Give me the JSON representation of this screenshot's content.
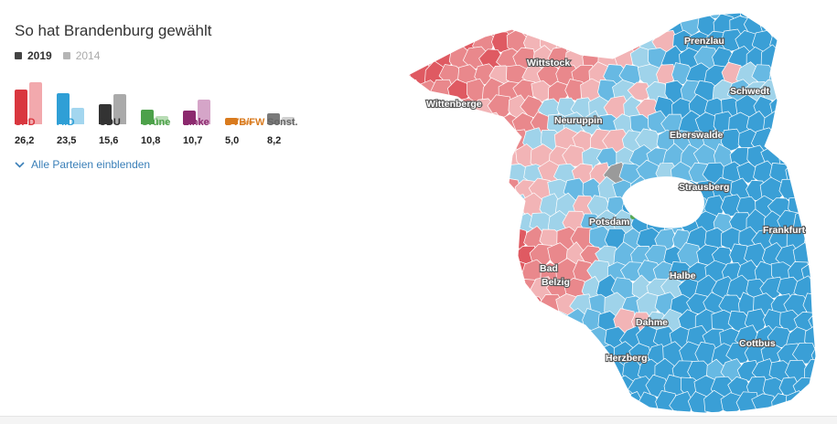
{
  "title": "So hat Brandenburg gewählt",
  "legend": {
    "current_year": "2019",
    "previous_year": "2014",
    "current_color": "#444444",
    "previous_color": "#b5b5b5"
  },
  "parties": [
    {
      "name": "SPD",
      "value": "26,2",
      "v2019": 26.2,
      "v2014": 31.9,
      "color": "#d9373f",
      "light": "#f2a9ad"
    },
    {
      "name": "AfD",
      "value": "23,5",
      "v2019": 23.5,
      "v2014": 12.2,
      "color": "#2f9fd6",
      "light": "#a3d6ef"
    },
    {
      "name": "CDU",
      "value": "15,6",
      "v2019": 15.6,
      "v2014": 23.0,
      "color": "#333333",
      "light": "#aaaaaa"
    },
    {
      "name": "Grüne",
      "value": "10,8",
      "v2019": 10.8,
      "v2014": 6.2,
      "color": "#4da14a",
      "light": "#b8dcb5"
    },
    {
      "name": "Linke",
      "value": "10,7",
      "v2019": 10.7,
      "v2014": 18.6,
      "color": "#8c2a6e",
      "light": "#d5a5c8"
    },
    {
      "name": "BVB/FW",
      "value": "5,0",
      "v2019": 5.0,
      "v2014": 2.7,
      "color": "#d97b1f",
      "light": "#f0c59a"
    },
    {
      "name": "Sonst.",
      "value": "8,2",
      "v2019": 8.2,
      "v2014": 5.4,
      "color": "#7a7a7a",
      "light": "#d0d0d0"
    }
  ],
  "toggle_label": "Alle Parteien einblenden",
  "map": {
    "cities": [
      "Prenzlau",
      "Wittstock",
      "Schwedt",
      "Wittenberge",
      "Neuruppin",
      "Eberswalde",
      "Strausberg",
      "Potsdam",
      "Frankfurt",
      "Bad",
      "Belzig",
      "Halbe",
      "Dahme",
      "Cottbus",
      "Herzberg"
    ],
    "palette": {
      "spd_strong": "#df5a62",
      "spd_mid": "#e9888c",
      "spd_light": "#f2b4b6",
      "afd_light": "#9fd3ea",
      "afd_mid": "#67b9e3",
      "afd_strong": "#3a9fd6",
      "cdu": "#9a9a9a",
      "gruene": "#56a852"
    }
  }
}
